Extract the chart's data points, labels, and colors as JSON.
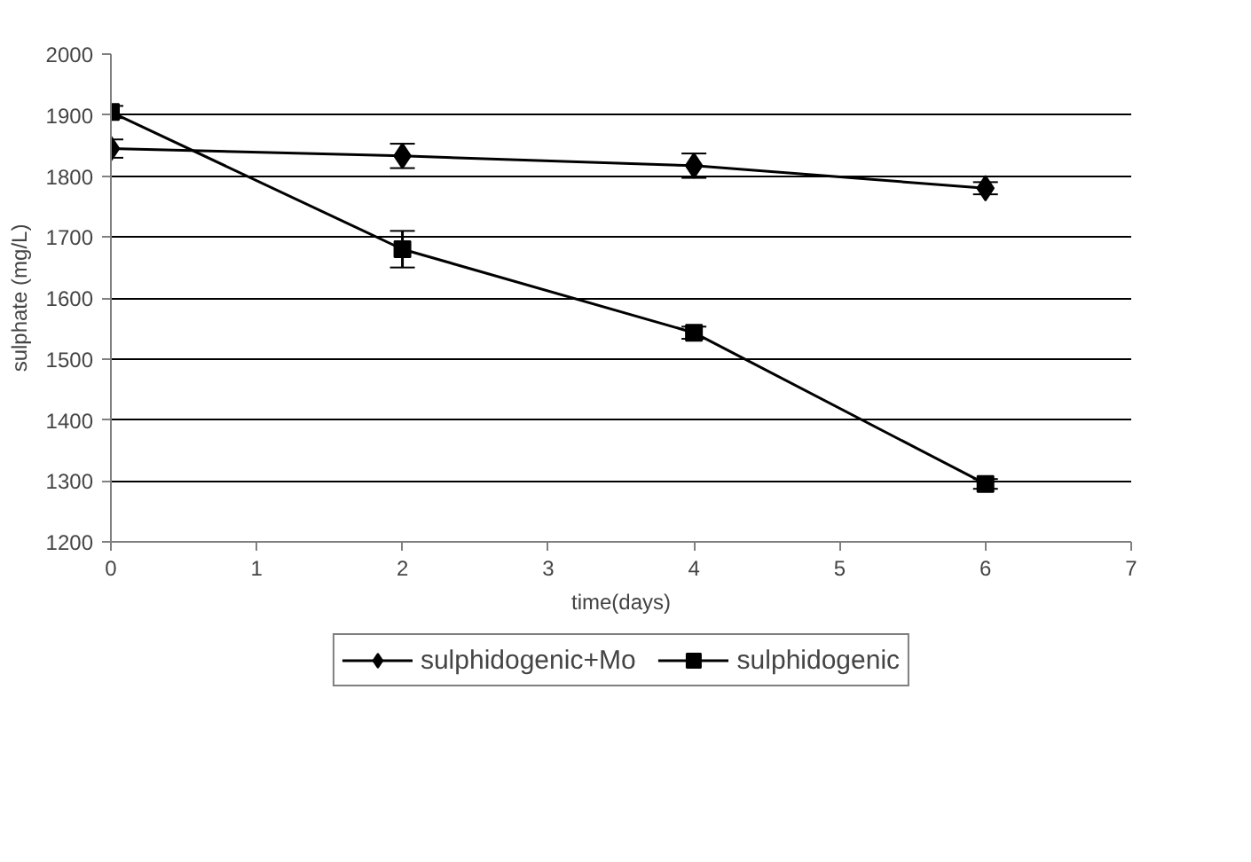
{
  "chart_data": {
    "type": "line",
    "xlabel": "time(days)",
    "ylabel": "sulphate (mg/L)",
    "x": [
      0,
      2,
      4,
      6
    ],
    "series": [
      {
        "name": "sulphidogenic+Mo",
        "color": "#000000",
        "marker": "diamond",
        "values": [
          1845,
          1833,
          1817,
          1780
        ],
        "errors": [
          15,
          20,
          20,
          10
        ]
      },
      {
        "name": "sulphidogenic",
        "color": "#000000",
        "marker": "square",
        "values": [
          1905,
          1680,
          1543,
          1295
        ],
        "errors": [
          10,
          30,
          10,
          8
        ]
      }
    ],
    "xlim": [
      0,
      7
    ],
    "xticks": [
      0,
      1,
      2,
      3,
      4,
      5,
      6,
      7
    ],
    "ylim": [
      1200,
      2000
    ],
    "yticks": [
      1200,
      1300,
      1400,
      1500,
      1600,
      1700,
      1800,
      1900,
      2000
    ],
    "grid": "y",
    "legend": "bottom",
    "line_style": "solid"
  }
}
